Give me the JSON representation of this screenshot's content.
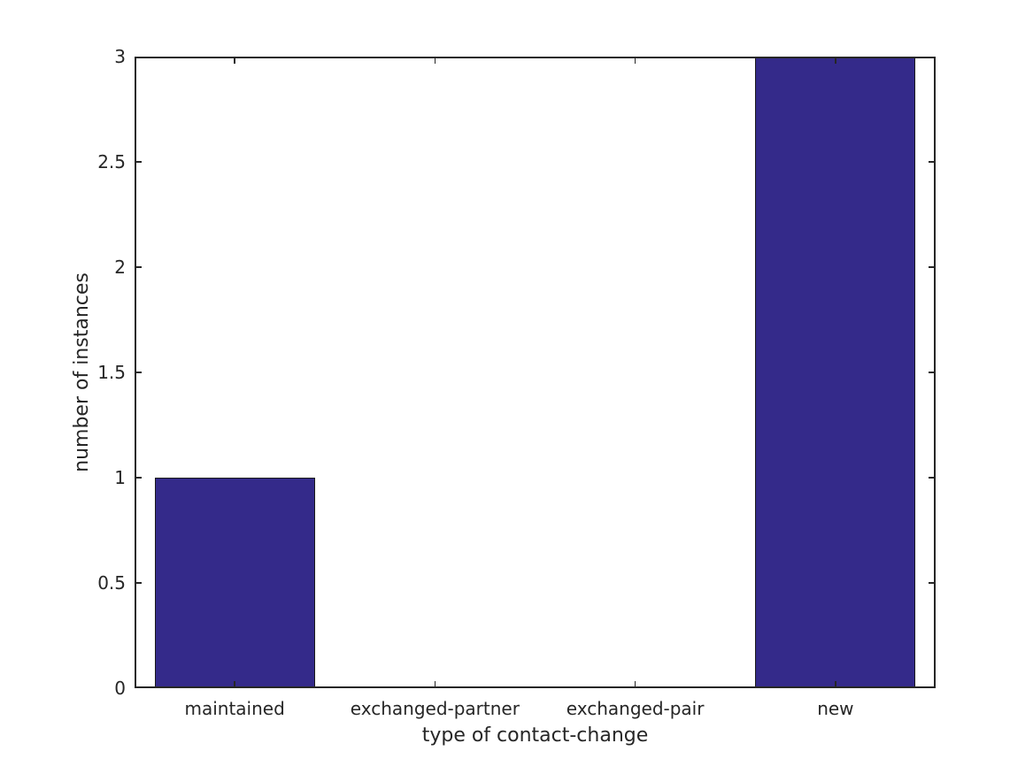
{
  "figure": {
    "background": "#ffffff"
  },
  "chart_data": {
    "type": "bar",
    "categories": [
      "maintained",
      "exchanged-partner",
      "exchanged-pair",
      "new"
    ],
    "values": [
      1,
      0,
      0,
      3
    ],
    "xlabel": "type of contact-change",
    "ylabel": "number of instances",
    "ylim": [
      0,
      3
    ],
    "yticks": [
      0,
      0.5,
      1,
      1.5,
      2,
      2.5,
      3
    ],
    "ytick_labels": [
      "0",
      "0.5",
      "1",
      "1.5",
      "2",
      "2.5",
      "3"
    ],
    "bar_width_ratio": 0.8,
    "grid": false,
    "legend_position": "none",
    "box": true,
    "tick_direction": "in",
    "colors": {
      "bar_fill": "#342a8a",
      "bar_edge": "#1a1a1a",
      "axis_line": "#262626",
      "text": "#262626",
      "background": "#ffffff"
    }
  }
}
